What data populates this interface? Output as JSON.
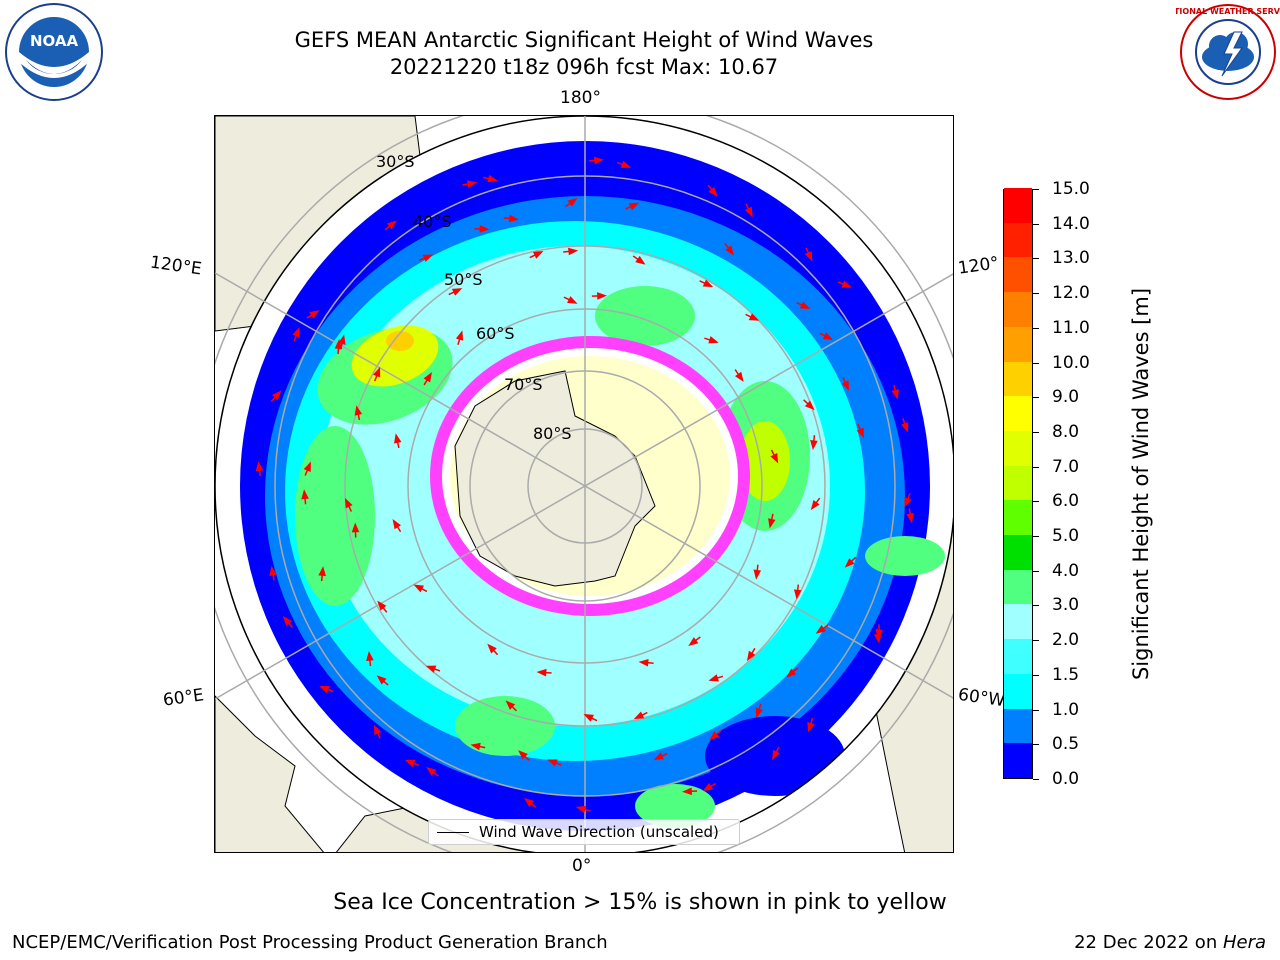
{
  "header": {
    "title_line1": "GEFS MEAN Antarctic Significant Height of Wind Waves",
    "title_line2": "20221220 t18z 096h fcst   Max: 10.67"
  },
  "logos": {
    "noaa": {
      "icon": "noaa-logo-icon",
      "text": "NOAA"
    },
    "nws": {
      "icon": "nws-logo-icon",
      "text": "NATIONAL WEATHER SERVICE"
    }
  },
  "map": {
    "projection": "south-polar-stereographic",
    "longitude_labels": {
      "top": "180°",
      "bottom": "0°",
      "left_upper": "120°E",
      "left_lower": "60°E",
      "right_upper": "120°",
      "right_lower": "60°W"
    },
    "latitude_labels": [
      "30°S",
      "40°S",
      "50°S",
      "60°S",
      "70°S",
      "80°S"
    ],
    "legend_label": "Wind Wave Direction (unscaled)",
    "arrow_color": "#ff0000",
    "land_color": "#eeecdc",
    "sea_ice_colors": [
      "#ff40ff",
      "#ffffff",
      "#ffff80"
    ]
  },
  "colorbar": {
    "label": "Significant Height of Wind Waves [m]",
    "ticks": [
      "0.0",
      "0.5",
      "1.0",
      "1.5",
      "2.0",
      "3.0",
      "4.0",
      "5.0",
      "6.0",
      "7.0",
      "8.0",
      "9.0",
      "10.0",
      "11.0",
      "12.0",
      "13.0",
      "14.0",
      "15.0"
    ],
    "colors": [
      "#0000ff",
      "#0080ff",
      "#00ffff",
      "#40ffff",
      "#a0ffff",
      "#50ff80",
      "#00e000",
      "#60ff00",
      "#c0ff00",
      "#e0ff00",
      "#ffff00",
      "#ffd000",
      "#ffa000",
      "#ff8000",
      "#ff5000",
      "#ff2000",
      "#ff0000"
    ]
  },
  "note": "Sea Ice Concentration > 15% is shown in pink to yellow",
  "footer": {
    "left": "NCEP/EMC/Verification Post Processing Product Generation Branch",
    "date": "22 Dec 2022 on ",
    "host": "Hera"
  }
}
